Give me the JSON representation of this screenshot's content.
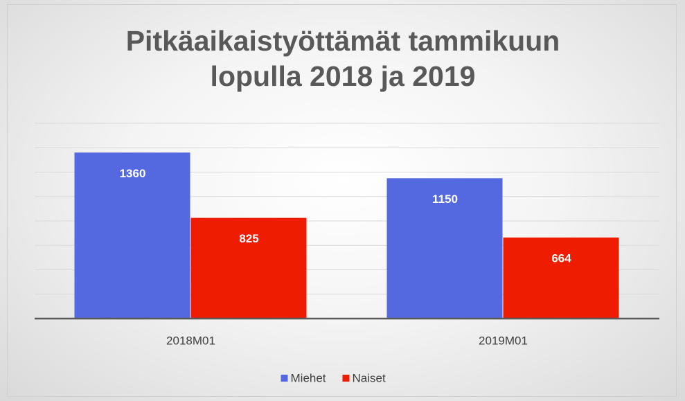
{
  "chart_data": {
    "type": "bar",
    "title": "Pitkäaikaistyöttämät tammikuun lopulla 2018 ja 2019",
    "categories": [
      "2018M01",
      "2019M01"
    ],
    "series": [
      {
        "name": "Miehet",
        "color": "#5469e0",
        "values": [
          1360,
          1150
        ]
      },
      {
        "name": "Naiset",
        "color": "#ee1c00",
        "values": [
          825,
          664
        ]
      }
    ],
    "ylim": [
      0,
      1600
    ],
    "yticks": [
      0,
      200,
      400,
      600,
      800,
      1000,
      1200,
      1400,
      1600
    ],
    "grid": true,
    "legend": "bottom"
  }
}
